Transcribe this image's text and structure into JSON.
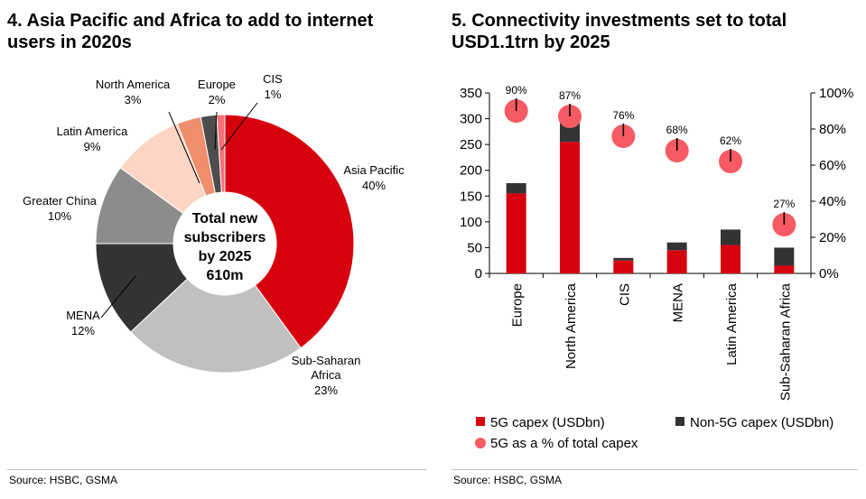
{
  "left_panel": {
    "title_line1": "4. Asia Pacific and Africa to add to internet",
    "title_line2": "users in 2020s",
    "source": "Source: HSBC, GSMA"
  },
  "right_panel": {
    "title_line1": "5. Connectivity investments set to total",
    "title_line2": "USD1.1trn by 2025",
    "source": "Source: HSBC, GSMA"
  },
  "chart_data": [
    {
      "type": "pie",
      "donut": true,
      "center_text": [
        "Total new",
        "subscribers",
        "by 2025",
        "610m"
      ],
      "slices": [
        {
          "name": "Asia Pacific",
          "value": 40,
          "label": "40%",
          "color": "#d7000f"
        },
        {
          "name": "Sub-Saharan Africa",
          "value": 23,
          "label": "23%",
          "color": "#c0c0c0"
        },
        {
          "name": "MENA",
          "value": 12,
          "label": "12%",
          "color": "#333333"
        },
        {
          "name": "Greater China",
          "value": 10,
          "label": "10%",
          "color": "#8c8c8c"
        },
        {
          "name": "Latin America",
          "value": 9,
          "label": "9%",
          "color": "#fcd5c5"
        },
        {
          "name": "North America",
          "value": 3,
          "label": "3%",
          "color": "#ef8d6c"
        },
        {
          "name": "Europe",
          "value": 2,
          "label": "2%",
          "color": "#4d4d4d"
        },
        {
          "name": "CIS",
          "value": 1,
          "label": "1%",
          "color": "#f77078"
        }
      ]
    },
    {
      "type": "bar",
      "stacked": true,
      "categories": [
        "Europe",
        "North America",
        "CIS",
        "MENA",
        "Latin America",
        "Sub-Saharan Africa"
      ],
      "series": [
        {
          "name": "5G capex (USDbn)",
          "values": [
            155,
            255,
            25,
            45,
            55,
            15
          ],
          "color": "#d7000f"
        },
        {
          "name": "Non-5G capex (USDbn)",
          "values": [
            20,
            40,
            5,
            15,
            30,
            35
          ],
          "color": "#333333"
        }
      ],
      "secondary_series": {
        "name": "5G as a % of total capex",
        "type": "scatter",
        "values": [
          90,
          87,
          76,
          68,
          62,
          27
        ],
        "labels": [
          "90%",
          "87%",
          "76%",
          "68%",
          "62%",
          "27%"
        ],
        "color": "#f65a62"
      },
      "ylim": [
        0,
        350
      ],
      "yticks": [
        0,
        50,
        100,
        150,
        200,
        250,
        300,
        350
      ],
      "y2lim": [
        0,
        100
      ],
      "y2ticks": [
        "0%",
        "20%",
        "40%",
        "60%",
        "80%",
        "100%"
      ],
      "y2tick_values": [
        0,
        20,
        40,
        60,
        80,
        100
      ],
      "legend_position": "bottom"
    }
  ]
}
